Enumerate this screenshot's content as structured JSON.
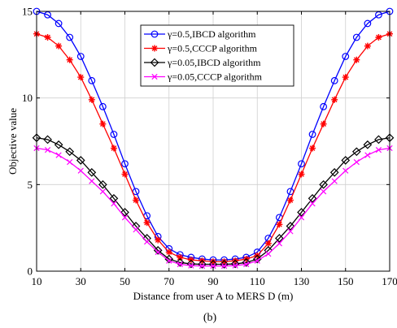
{
  "caption": "(b)",
  "chart_data": {
    "type": "line",
    "title": "",
    "xlabel": "Distance from user A to MERS D (m)",
    "ylabel": "Objective value",
    "xlim": [
      10,
      170
    ],
    "ylim": [
      0,
      15
    ],
    "xticks": [
      10,
      30,
      50,
      70,
      90,
      110,
      130,
      150,
      170
    ],
    "yticks": [
      0,
      5,
      10,
      15
    ],
    "grid": true,
    "legend_position": "top-center",
    "x": [
      10,
      15,
      20,
      25,
      30,
      35,
      40,
      45,
      50,
      55,
      60,
      65,
      70,
      75,
      80,
      85,
      90,
      95,
      100,
      105,
      110,
      115,
      120,
      125,
      130,
      135,
      140,
      145,
      150,
      155,
      160,
      165,
      170
    ],
    "series": [
      {
        "name": "γ=0.5,IBCD algorithm",
        "color": "#0000ff",
        "marker": "circle",
        "values": [
          15.0,
          14.8,
          14.3,
          13.5,
          12.4,
          11.0,
          9.5,
          7.9,
          6.2,
          4.6,
          3.2,
          2.0,
          1.3,
          0.95,
          0.8,
          0.7,
          0.65,
          0.65,
          0.7,
          0.8,
          1.1,
          1.9,
          3.1,
          4.6,
          6.2,
          7.9,
          9.5,
          11.0,
          12.4,
          13.5,
          14.3,
          14.8,
          15.0
        ]
      },
      {
        "name": "γ=0.5,CCCP algorithm",
        "color": "#ff0000",
        "marker": "star",
        "values": [
          13.7,
          13.5,
          13.0,
          12.2,
          11.2,
          9.9,
          8.5,
          7.1,
          5.6,
          4.1,
          2.8,
          1.8,
          1.1,
          0.8,
          0.65,
          0.6,
          0.55,
          0.55,
          0.6,
          0.7,
          0.9,
          1.6,
          2.7,
          4.1,
          5.6,
          7.1,
          8.5,
          9.9,
          11.2,
          12.2,
          13.0,
          13.5,
          13.7
        ]
      },
      {
        "name": "γ=0.05,IBCD algorithm",
        "color": "#000000",
        "marker": "diamond",
        "values": [
          7.7,
          7.6,
          7.3,
          6.9,
          6.4,
          5.7,
          5.0,
          4.2,
          3.4,
          2.6,
          1.9,
          1.2,
          0.7,
          0.5,
          0.42,
          0.4,
          0.4,
          0.4,
          0.42,
          0.5,
          0.7,
          1.2,
          1.9,
          2.6,
          3.4,
          4.2,
          5.0,
          5.7,
          6.4,
          6.9,
          7.3,
          7.6,
          7.7
        ]
      },
      {
        "name": "γ=0.05,CCCP algorithm",
        "color": "#ff00ff",
        "marker": "x",
        "values": [
          7.1,
          7.0,
          6.7,
          6.3,
          5.8,
          5.2,
          4.6,
          3.9,
          3.1,
          2.4,
          1.7,
          1.1,
          0.6,
          0.4,
          0.32,
          0.3,
          0.3,
          0.3,
          0.32,
          0.4,
          0.6,
          1.0,
          1.6,
          2.3,
          3.1,
          3.9,
          4.6,
          5.2,
          5.8,
          6.3,
          6.7,
          7.0,
          7.1
        ]
      }
    ]
  }
}
